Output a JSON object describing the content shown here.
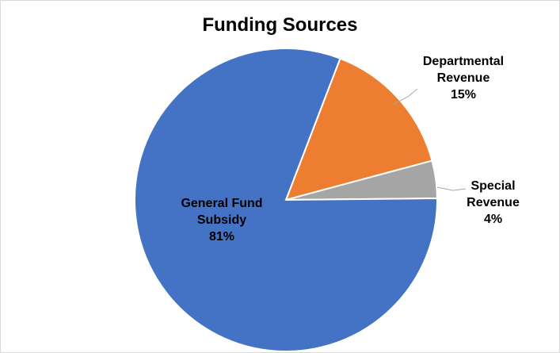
{
  "chart_data": {
    "type": "pie",
    "title": "Funding Sources",
    "categories": [
      "Departmental Revenue",
      "Special Revenue",
      "General Fund Subsidy"
    ],
    "values": [
      15,
      4,
      81
    ],
    "unit": "%",
    "colors": [
      "#ED7D31",
      "#A5A5A5",
      "#4472C4"
    ],
    "start_angle_deg": 21,
    "labels": {
      "general": {
        "lines": [
          "General Fund",
          "Subsidy"
        ],
        "percent": "81%"
      },
      "departmental": {
        "lines": [
          "Departmental",
          "Revenue"
        ],
        "percent": "15%"
      },
      "special": {
        "lines": [
          "Special",
          "Revenue"
        ],
        "percent": "4%"
      }
    },
    "legend": "none",
    "grid": false
  }
}
